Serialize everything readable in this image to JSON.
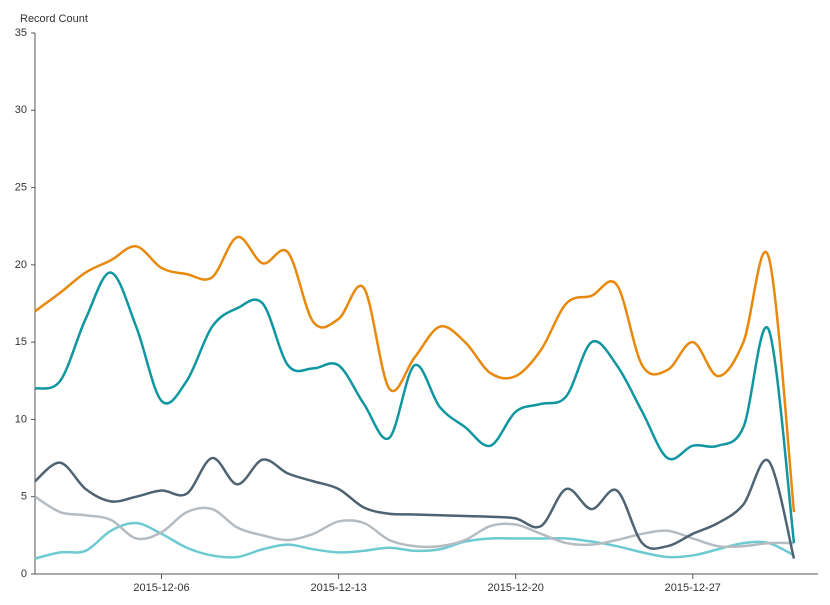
{
  "chart_data": {
    "type": "line",
    "ylabel": "Record Count",
    "categories": [
      null,
      null,
      null,
      null,
      null,
      "2015-12-06",
      null,
      null,
      null,
      null,
      null,
      null,
      "2015-12-13",
      null,
      null,
      null,
      null,
      null,
      null,
      "2015-12-20",
      null,
      null,
      null,
      null,
      null,
      null,
      "2015-12-27",
      null,
      null,
      null,
      null
    ],
    "series": [
      {
        "color": "#e8890c",
        "values": [
          17,
          18.2,
          19.5,
          20.3,
          21.2,
          19.8,
          19.4,
          19.2,
          21.8,
          20.1,
          20.8,
          16.3,
          16.5,
          18.5,
          12,
          14,
          16,
          15,
          13,
          12.8,
          14.5,
          17.5,
          18,
          18.7,
          13.5,
          13.2,
          15,
          12.8,
          15,
          20.5,
          4
        ]
      },
      {
        "color": "#0f96a0",
        "values": [
          12,
          12.5,
          16.5,
          19.5,
          16,
          11.2,
          12.5,
          16,
          17.2,
          17.5,
          13.5,
          13.3,
          13.5,
          11,
          8.8,
          13.5,
          10.8,
          9.5,
          8.3,
          10.5,
          11,
          11.5,
          15,
          13.5,
          10.5,
          7.5,
          8.3,
          8.3,
          9.5,
          15.8,
          2
        ]
      },
      {
        "color": "#4e6472",
        "values": [
          6,
          7.2,
          5.5,
          4.7,
          5,
          5.4,
          5.2,
          7.5,
          5.8,
          7.4,
          6.5,
          6,
          5.5,
          4.3,
          3.9,
          3.85,
          3.8,
          3.75,
          3.7,
          3.6,
          3.1,
          5.5,
          4.2,
          5.4,
          2,
          1.8,
          2.6,
          3.3,
          4.5,
          7.3,
          1
        ]
      },
      {
        "color": "#b4bcc2",
        "values": [
          5,
          4,
          3.8,
          3.5,
          2.3,
          2.7,
          4,
          4.2,
          3,
          2.5,
          2.2,
          2.6,
          3.4,
          3.3,
          2.2,
          1.8,
          1.8,
          2.2,
          3.1,
          3.2,
          2.6,
          2,
          1.9,
          2.2,
          2.6,
          2.8,
          2.3,
          1.8,
          1.8,
          2,
          2
        ]
      },
      {
        "color": "#6ccad0",
        "values": [
          1,
          1.4,
          1.5,
          2.8,
          3.3,
          2.6,
          1.7,
          1.2,
          1.1,
          1.6,
          1.9,
          1.6,
          1.4,
          1.5,
          1.7,
          1.5,
          1.6,
          2.1,
          2.3,
          2.3,
          2.3,
          2.3,
          2.1,
          1.8,
          1.4,
          1.1,
          1.2,
          1.6,
          2,
          2,
          1.2
        ]
      }
    ],
    "ylim": [
      0,
      35
    ],
    "yticks": [
      0,
      5,
      10,
      15,
      20,
      25,
      30,
      35
    ]
  }
}
